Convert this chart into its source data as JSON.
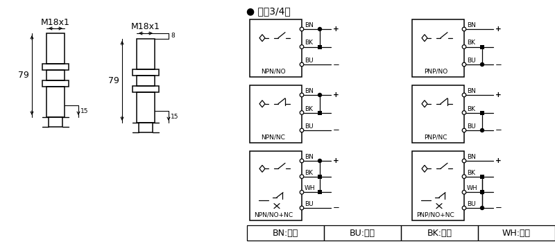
{
  "bg_color": "#ffffff",
  "lc": "#000000",
  "title": "● 直涁3/4线",
  "s1_label": "M18x1",
  "s2_label": "M18x1",
  "dim_79": "79",
  "dim_15": "15",
  "dim_8": "8",
  "labels_left": [
    "NPN/NO",
    "NPN/NC",
    "NPN/NO+NC"
  ],
  "labels_right": [
    "PNP/NO",
    "PNP/NC",
    "PNP/NO+NC"
  ],
  "wires_3": [
    "BN",
    "BK",
    "BU"
  ],
  "wires_4": [
    "BN",
    "BK",
    "WH",
    "BU"
  ],
  "legend": [
    "BN:棕色",
    "BU:兰色",
    "BK:黑色",
    "WH:白色"
  ],
  "fs": 7.5,
  "fs_sm": 6.5,
  "fs_title": 9
}
